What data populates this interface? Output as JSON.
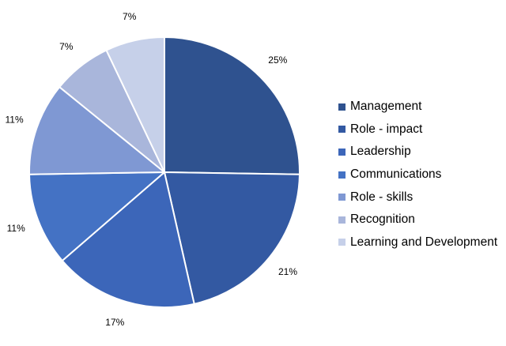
{
  "chart_data": {
    "type": "pie",
    "categories": [
      "Management",
      "Role - impact",
      "Leadership",
      "Communications",
      "Role - skills",
      "Recognition",
      "Learning and Development"
    ],
    "values": [
      25,
      21,
      17,
      11,
      11,
      7,
      7
    ],
    "labels": [
      "25%",
      "21%",
      "17%",
      "11%",
      "11%",
      "7%",
      "7%"
    ],
    "colors": [
      "#2f528f",
      "#3359a2",
      "#3c66b9",
      "#4472c4",
      "#7f98d3",
      "#a9b6db",
      "#c6d0e9"
    ],
    "legend_position": "right",
    "start_angle": "top, clockwise"
  }
}
